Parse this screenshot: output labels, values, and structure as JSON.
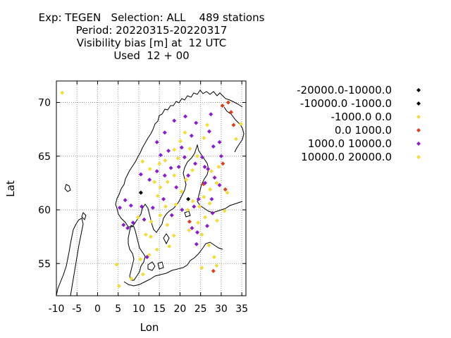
{
  "header": {
    "lines": [
      "Exp: TEGEN   Selection: ALL    489 stations",
      "Period: 20220315-20220317",
      "Visibility bias [m] at  12 UTC",
      "Used  12 + 00"
    ]
  },
  "chart_data": {
    "type": "scatter",
    "title": "Exp: TEGEN   Selection: ALL    489 stations",
    "subtitle": [
      "Period: 20220315-20220317",
      "Visibility bias [m] at  12 UTC",
      "Used  12 + 00"
    ],
    "xlabel": "Lon",
    "ylabel": "Lat",
    "xlim": [
      -10,
      36
    ],
    "ylim": [
      52,
      72
    ],
    "xticks": [
      -10,
      -5,
      0,
      5,
      10,
      15,
      20,
      25,
      30,
      35
    ],
    "xtick_labels": [
      "-10",
      "-5",
      "0",
      "5",
      "10",
      "15",
      "20",
      "25",
      "30",
      "35"
    ],
    "yticks": [
      55,
      60,
      65,
      70
    ],
    "ytick_labels": [
      "55",
      "60",
      "65",
      "70"
    ],
    "grid": true,
    "legend_position": "right",
    "series": [
      {
        "name": "-20000.0-10000.0",
        "color": "#000000",
        "points": []
      },
      {
        "name": "-10000.0 -1000.0",
        "color": "#000000",
        "points": [
          [
            10.5,
            61.6
          ],
          [
            22.0,
            61.0
          ]
        ]
      },
      {
        "name": "-1000.0 0.0",
        "color": "#f2dd3a",
        "points": [
          [
            -8.6,
            70.9
          ],
          [
            5.2,
            52.9
          ],
          [
            4.6,
            54.9
          ],
          [
            8.2,
            53.6
          ],
          [
            10.4,
            55.4
          ],
          [
            11.0,
            54.0
          ],
          [
            12.5,
            55.8
          ],
          [
            11.7,
            57.7
          ],
          [
            9.8,
            59.3
          ],
          [
            13.0,
            58.9
          ],
          [
            15.2,
            59.5
          ],
          [
            14.6,
            61.3
          ],
          [
            16.5,
            60.3
          ],
          [
            13.8,
            62.6
          ],
          [
            15.2,
            62.1
          ],
          [
            17.0,
            62.6
          ],
          [
            18.6,
            63.2
          ],
          [
            16.4,
            64.6
          ],
          [
            18.6,
            65.6
          ],
          [
            20.1,
            66.4
          ],
          [
            21.2,
            67.2
          ],
          [
            22.4,
            65.7
          ],
          [
            25.8,
            66.7
          ],
          [
            26.6,
            67.9
          ],
          [
            24.2,
            65.0
          ],
          [
            23.0,
            63.7
          ],
          [
            21.5,
            62.8
          ],
          [
            20.4,
            61.7
          ],
          [
            19.0,
            60.5
          ],
          [
            21.9,
            60.0
          ],
          [
            23.1,
            60.8
          ],
          [
            24.7,
            60.3
          ],
          [
            25.8,
            61.2
          ],
          [
            27.3,
            61.9
          ],
          [
            28.9,
            62.5
          ],
          [
            27.6,
            63.6
          ],
          [
            29.4,
            64.0
          ],
          [
            27.2,
            60.6
          ],
          [
            26.1,
            59.3
          ],
          [
            24.4,
            58.8
          ],
          [
            22.2,
            58.1
          ],
          [
            25.3,
            57.7
          ],
          [
            27.0,
            56.7
          ],
          [
            28.3,
            55.6
          ],
          [
            25.3,
            54.6
          ],
          [
            28.9,
            54.8
          ],
          [
            30.8,
            59.9
          ],
          [
            33.6,
            66.6
          ],
          [
            34.8,
            68.0
          ],
          [
            29.0,
            59.0
          ],
          [
            31.5,
            61.6
          ],
          [
            17.4,
            56.6
          ],
          [
            18.5,
            57.6
          ],
          [
            16.9,
            58.6
          ],
          [
            14.4,
            56.3
          ],
          [
            12.9,
            57.5
          ],
          [
            19.5,
            64.8
          ],
          [
            15.0,
            64.3
          ],
          [
            12.7,
            63.8
          ],
          [
            10.9,
            64.5
          ]
        ]
      },
      {
        "name": "0.0 1000.0",
        "color": "#e03d1c",
        "points": [
          [
            31.0,
            61.9
          ],
          [
            30.3,
            69.7
          ],
          [
            33.0,
            67.9
          ],
          [
            32.4,
            69.1
          ],
          [
            30.4,
            64.3
          ],
          [
            22.3,
            58.9
          ],
          [
            28.1,
            54.3
          ],
          [
            25.7,
            62.4
          ],
          [
            31.7,
            70.0
          ]
        ]
      },
      {
        "name": "1000.0 10000.0",
        "color": "#8a1ecf",
        "points": [
          [
            5.4,
            60.2
          ],
          [
            6.7,
            60.9
          ],
          [
            8.1,
            60.4
          ],
          [
            7.3,
            58.3
          ],
          [
            8.6,
            58.8
          ],
          [
            10.5,
            63.3
          ],
          [
            12.6,
            62.8
          ],
          [
            14.4,
            63.6
          ],
          [
            16.3,
            63.2
          ],
          [
            17.8,
            63.9
          ],
          [
            19.7,
            64.0
          ],
          [
            21.1,
            64.9
          ],
          [
            22.0,
            63.2
          ],
          [
            23.7,
            64.3
          ],
          [
            25.4,
            64.9
          ],
          [
            26.8,
            63.8
          ],
          [
            28.4,
            63.0
          ],
          [
            29.6,
            62.3
          ],
          [
            29.6,
            66.3
          ],
          [
            27.1,
            67.3
          ],
          [
            23.9,
            68.1
          ],
          [
            21.3,
            68.7
          ],
          [
            18.6,
            68.3
          ],
          [
            16.3,
            67.2
          ],
          [
            14.4,
            66.3
          ],
          [
            15.3,
            65.1
          ],
          [
            17.2,
            65.5
          ],
          [
            20.4,
            65.8
          ],
          [
            22.8,
            66.9
          ],
          [
            27.5,
            68.9
          ],
          [
            28.1,
            65.9
          ],
          [
            30.0,
            65.0
          ],
          [
            26.1,
            62.5
          ],
          [
            24.5,
            61.0
          ],
          [
            23.4,
            60.3
          ],
          [
            20.5,
            60.0
          ],
          [
            18.0,
            59.5
          ],
          [
            22.9,
            58.3
          ],
          [
            24.2,
            57.9
          ],
          [
            26.6,
            58.5
          ],
          [
            27.7,
            61.0
          ],
          [
            27.9,
            59.7
          ],
          [
            24.0,
            56.8
          ],
          [
            12.0,
            55.6
          ],
          [
            6.3,
            58.6
          ],
          [
            19.1,
            62.1
          ],
          [
            16.0,
            61.0
          ],
          [
            13.4,
            60.2
          ],
          [
            11.3,
            59.1
          ],
          [
            10.7,
            60.3
          ],
          [
            26.0,
            64.0
          ]
        ]
      },
      {
        "name": "10000.0 20000.0",
        "color": "#f2dd3a",
        "points": []
      }
    ]
  }
}
